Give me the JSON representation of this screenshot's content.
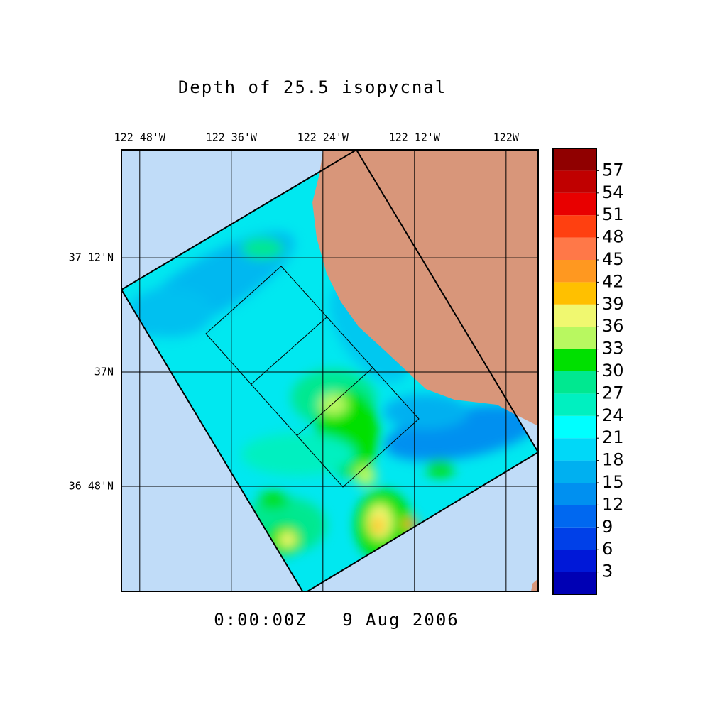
{
  "chart_data": {
    "type": "map",
    "title": "Depth of 25.5 isopycnal",
    "timestamp": "0:00:00Z   9 Aug 2006",
    "xlim": [
      -122.84,
      -121.93
    ],
    "ylim": [
      36.616,
      37.389
    ],
    "xticks": [
      {
        "value": -122.8,
        "label": "122 48'W"
      },
      {
        "value": -122.6,
        "label": "122 36'W"
      },
      {
        "value": -122.4,
        "label": "122 24'W"
      },
      {
        "value": -122.2,
        "label": "122 12'W"
      },
      {
        "value": -122,
        "label": "122W"
      }
    ],
    "yticks": [
      {
        "value": 37.2,
        "label": "37 12'N"
      },
      {
        "value": 37,
        "label": "37N"
      },
      {
        "value": 36.8,
        "label": "36 48'N"
      }
    ],
    "grid": true,
    "colorbar": {
      "lim": [
        0,
        60
      ],
      "ticks": [
        3,
        6,
        9,
        12,
        15,
        18,
        21,
        24,
        27,
        30,
        33,
        36,
        39,
        42,
        45,
        48,
        51,
        54,
        57
      ],
      "colors": [
        "#0000b4",
        "#0018d8",
        "#0040e8",
        "#0068f0",
        "#0090f0",
        "#00b0f0",
        "#00d8f8",
        "#00ffff",
        "#00f0c0",
        "#00e890",
        "#00e000",
        "#b8f860",
        "#f0f870",
        "#ffc000",
        "#ff9820",
        "#ff7848",
        "#ff4010",
        "#e80000",
        "#c00000",
        "#900000"
      ]
    }
  }
}
